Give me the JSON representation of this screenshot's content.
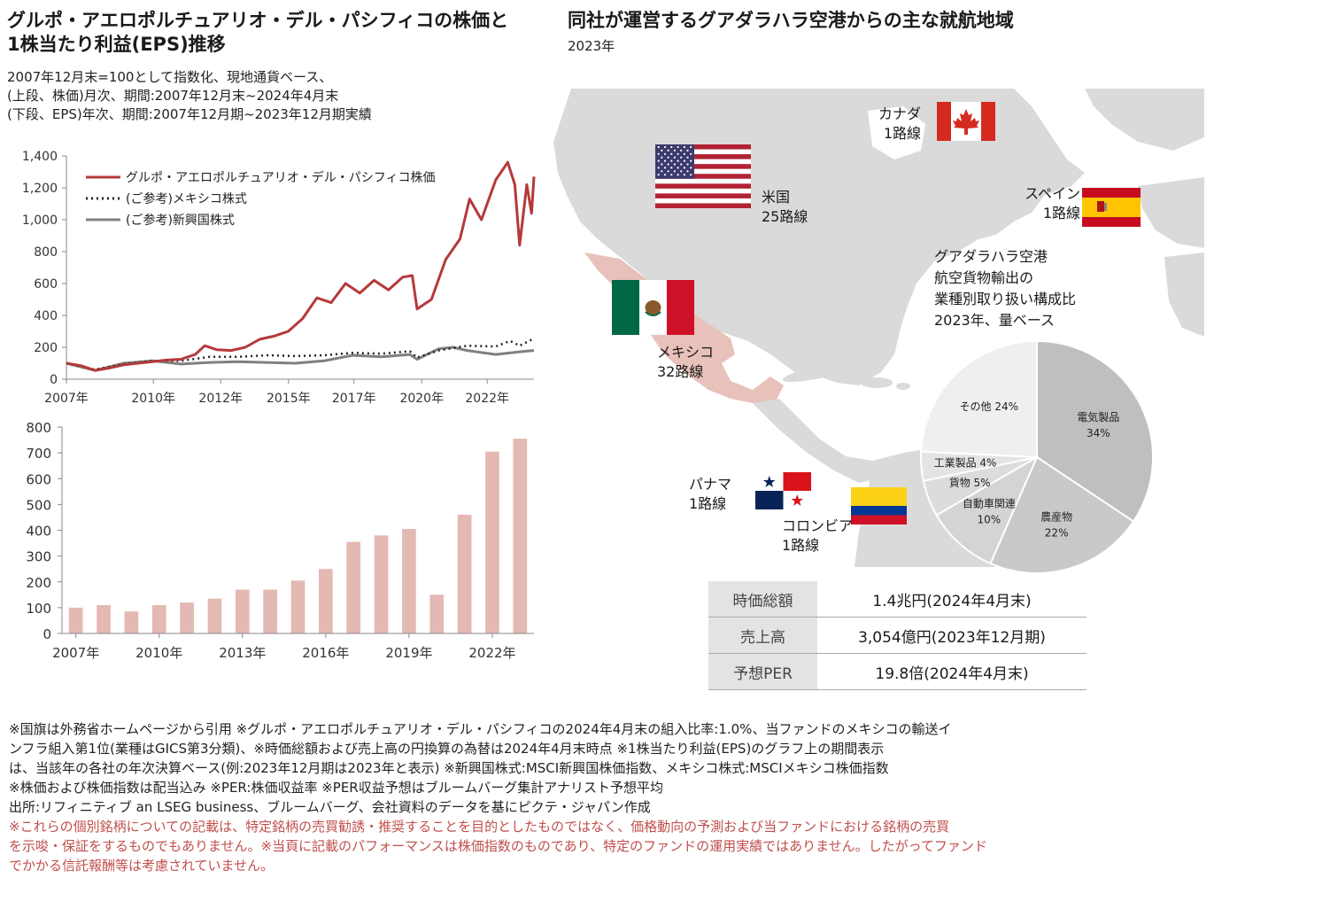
{
  "left": {
    "title_line1": "グルポ・アエロポルチュアリオ・デル・パシフィコの株価と",
    "title_line2": "1株当たり利益(EPS)推移",
    "sub1": "2007年12月末=100として指数化、現地通貨ベース、",
    "sub2": "(上段、株価)月次、期間:2007年12月末~2024年4月末",
    "sub3": "(下段、EPS)年次、期間:2007年12月期~2023年12月期実績"
  },
  "right": {
    "title": "同社が運営するグアダラハラ空港からの主な就航地域",
    "sub": "2023年"
  },
  "chart_data": [
    {
      "type": "line",
      "ylim": [
        0,
        1400
      ],
      "yticks": [
        "0",
        "200",
        "400",
        "600",
        "800",
        "1,000",
        "1,200",
        "1,400"
      ],
      "xtick_labels": [
        "2007年",
        "2010年",
        "2012年",
        "2015年",
        "2017年",
        "2020年",
        "2022年"
      ],
      "x_range": [
        "2007-12",
        "2024-04"
      ],
      "series": [
        {
          "name": "グルポ・アエロポルチュアリオ・デル・パシフィコ株価",
          "color": "#b5393a",
          "style": "solid",
          "points": [
            [
              "2007-12",
              100
            ],
            [
              "2008-06",
              85
            ],
            [
              "2008-12",
              55
            ],
            [
              "2009-06",
              70
            ],
            [
              "2009-12",
              90
            ],
            [
              "2010-06",
              100
            ],
            [
              "2010-12",
              110
            ],
            [
              "2011-06",
              120
            ],
            [
              "2011-12",
              125
            ],
            [
              "2012-06",
              155
            ],
            [
              "2012-10",
              210
            ],
            [
              "2013-03",
              185
            ],
            [
              "2013-09",
              180
            ],
            [
              "2014-03",
              200
            ],
            [
              "2014-09",
              250
            ],
            [
              "2015-03",
              270
            ],
            [
              "2015-09",
              300
            ],
            [
              "2016-03",
              380
            ],
            [
              "2016-09",
              510
            ],
            [
              "2017-03",
              480
            ],
            [
              "2017-09",
              600
            ],
            [
              "2018-03",
              540
            ],
            [
              "2018-09",
              620
            ],
            [
              "2019-03",
              560
            ],
            [
              "2019-09",
              640
            ],
            [
              "2020-01",
              650
            ],
            [
              "2020-03",
              440
            ],
            [
              "2020-09",
              500
            ],
            [
              "2021-03",
              750
            ],
            [
              "2021-09",
              880
            ],
            [
              "2022-01",
              1130
            ],
            [
              "2022-06",
              1000
            ],
            [
              "2022-12",
              1250
            ],
            [
              "2023-05",
              1360
            ],
            [
              "2023-08",
              1220
            ],
            [
              "2023-10",
              840
            ],
            [
              "2024-01",
              1220
            ],
            [
              "2024-03",
              1040
            ],
            [
              "2024-04",
              1270
            ]
          ]
        },
        {
          "name": "(ご参考)メキシコ株式",
          "color": "#222222",
          "style": "dotted",
          "points": [
            [
              "2007-12",
              100
            ],
            [
              "2008-12",
              60
            ],
            [
              "2009-12",
              95
            ],
            [
              "2010-12",
              115
            ],
            [
              "2011-12",
              115
            ],
            [
              "2012-12",
              140
            ],
            [
              "2013-12",
              140
            ],
            [
              "2014-12",
              150
            ],
            [
              "2015-12",
              145
            ],
            [
              "2016-12",
              150
            ],
            [
              "2017-12",
              165
            ],
            [
              "2018-12",
              160
            ],
            [
              "2019-12",
              175
            ],
            [
              "2020-03",
              135
            ],
            [
              "2020-12",
              180
            ],
            [
              "2021-12",
              210
            ],
            [
              "2022-12",
              205
            ],
            [
              "2023-06",
              240
            ],
            [
              "2023-10",
              210
            ],
            [
              "2024-04",
              255
            ]
          ]
        },
        {
          "name": "(ご参考)新興国株式",
          "color": "#808080",
          "style": "solid",
          "points": [
            [
              "2007-12",
              100
            ],
            [
              "2008-12",
              55
            ],
            [
              "2009-12",
              100
            ],
            [
              "2010-12",
              115
            ],
            [
              "2011-12",
              95
            ],
            [
              "2012-12",
              105
            ],
            [
              "2013-12",
              110
            ],
            [
              "2014-12",
              105
            ],
            [
              "2015-12",
              100
            ],
            [
              "2016-12",
              115
            ],
            [
              "2017-12",
              150
            ],
            [
              "2018-12",
              140
            ],
            [
              "2019-12",
              155
            ],
            [
              "2020-03",
              125
            ],
            [
              "2020-12",
              190
            ],
            [
              "2021-06",
              200
            ],
            [
              "2021-12",
              180
            ],
            [
              "2022-12",
              155
            ],
            [
              "2023-12",
              175
            ],
            [
              "2024-04",
              180
            ]
          ]
        }
      ]
    },
    {
      "type": "bar",
      "ylim": [
        0,
        800
      ],
      "yticks": [
        "0",
        "100",
        "200",
        "300",
        "400",
        "500",
        "600",
        "700",
        "800"
      ],
      "categories": [
        "2007年",
        "2008年",
        "2009年",
        "2010年",
        "2011年",
        "2012年",
        "2013年",
        "2014年",
        "2015年",
        "2016年",
        "2017年",
        "2018年",
        "2019年",
        "2020年",
        "2021年",
        "2022年",
        "2023年"
      ],
      "xtick_labels": [
        "2007年",
        "2010年",
        "2013年",
        "2016年",
        "2019年",
        "2022年"
      ],
      "values": [
        100,
        110,
        85,
        110,
        120,
        135,
        170,
        170,
        205,
        250,
        355,
        380,
        405,
        150,
        460,
        705,
        755
      ],
      "color": "#e4b9b3"
    },
    {
      "type": "pie",
      "title_lines": [
        "グアダラハラ空港",
        "航空貨物輸出の",
        "業種別取り扱い構成比"
      ],
      "subtitle": "2023年、量ベース",
      "slices": [
        {
          "label": "電気製品",
          "pct_label": "34%",
          "value": 34,
          "color": "#bfbfbf"
        },
        {
          "label": "農産物",
          "pct_label": "22%",
          "value": 22,
          "color": "#c9c9c9"
        },
        {
          "label": "自動車関連",
          "pct_label": "10%",
          "value": 10,
          "color": "#d4d4d4"
        },
        {
          "label": "貨物",
          "pct_label": "5%",
          "value": 5,
          "color": "#dcdcdc"
        },
        {
          "label": "工業製品",
          "pct_label": "4%",
          "value": 4,
          "color": "#e4e4e4"
        },
        {
          "label": "その他",
          "pct_label": "24%",
          "value": 24,
          "color": "#efefef"
        }
      ]
    }
  ],
  "map": {
    "canada": {
      "name": "カナダ",
      "routes": "1路線"
    },
    "usa": {
      "name": "米国",
      "routes": "25路線"
    },
    "spain": {
      "name": "スペイン",
      "routes": "1路線"
    },
    "mexico": {
      "name": "メキシコ",
      "routes": "32路線"
    },
    "panama": {
      "name": "パナマ",
      "routes": "1路線"
    },
    "colombia": {
      "name": "コロンビア",
      "routes": "1路線"
    },
    "colors": {
      "land": "#dadada",
      "mexico": "#e7c1ba"
    }
  },
  "stats": [
    {
      "key": "時価総額",
      "value": "1.4兆円(2024年4月末)"
    },
    {
      "key": "売上高",
      "value": "3,054億円(2023年12月期)"
    },
    {
      "key": "予想PER",
      "value": "19.8倍(2024年4月末)"
    }
  ],
  "notes": {
    "n1": "※国旗は外務省ホームページから引用  ※グルポ・アエロポルチュアリオ・デル・パシフィコの2024年4月末の組入比率:1.0%、当ファンドのメキシコの輸送イ",
    "n2": "ンフラ組入第1位(業種はGICS第3分類)、※時価総額および売上高の円換算の為替は2024年4月末時点 ※1株当たり利益(EPS)のグラフ上の期間表示",
    "n3": "は、当該年の各社の年次決算ベース(例:2023年12月期は2023年と表示) ※新興国株式:MSCI新興国株価指数、メキシコ株式:MSCIメキシコ株価指数",
    "n4": "※株価および株価指数は配当込み ※PER:株価収益率 ※PER収益予想はブルームバーグ集計アナリスト予想平均",
    "n5": "出所:リフィニティブ an LSEG business、ブルームバーグ、会社資料のデータを基にピクテ・ジャパン作成",
    "r1": "※これらの個別銘柄についての記載は、特定銘柄の売買勧誘・推奨することを目的としたものではなく、価格動向の予測および当ファンドにおける銘柄の売買",
    "r2": "を示唆・保証をするものでもありません。※当頁に記載のパフォーマンスは株価指数のものであり、特定のファンドの運用実績ではありません。したがってファンド",
    "r3": "でかかる信託報酬等は考慮されていません。",
    "red_color": "#c0504d"
  }
}
